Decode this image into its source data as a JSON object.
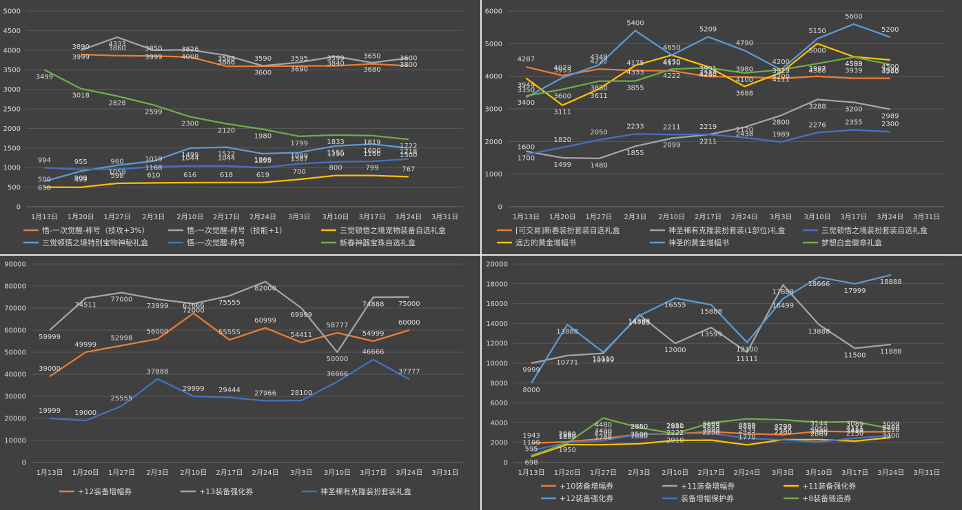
{
  "chart_data": [
    {
      "type": "line",
      "title": "",
      "categories": [
        "1月13日",
        "1月20日",
        "1月27日",
        "2月3日",
        "2月10日",
        "2月17日",
        "2月24日",
        "3月3日",
        "3月10日",
        "3月17日",
        "3月24日",
        "3月31日"
      ],
      "ylim": [
        0,
        5000
      ],
      "ytick_step": 500,
      "grid": true,
      "legend_position": "bottom",
      "series": [
        {
          "name": "悟-一次觉醒-称号（技攻+3%）",
          "color": "#ed7d31",
          "values": [
            null,
            3890,
            3860,
            3850,
            3826,
            3588,
            3590,
            3595,
            3599,
            3650,
            3600,
            null
          ]
        },
        {
          "name": "悟-一次觉醒-称号（技能+1）",
          "color": "#a5a5a5",
          "values": [
            null,
            3999,
            4333,
            3999,
            4008,
            3866,
            3600,
            3690,
            3840,
            3680,
            3800,
            null
          ]
        },
        {
          "name": "三觉顿悟之境宠物装备自选礼盒",
          "color": "#ffc000",
          "values": [
            500,
            499,
            598,
            610,
            616,
            618,
            619,
            700,
            800,
            799,
            767,
            null
          ]
        },
        {
          "name": "三觉顿悟之境特别宝物神秘礼盒",
          "color": "#5b9bd5",
          "values": [
            650,
            909,
            1059,
            1168,
            1499,
            1522,
            1355,
            1387,
            1555,
            1600,
            1500,
            null
          ]
        },
        {
          "name": "悟-一次觉醒-称号",
          "color": "#4472c4",
          "values": [
            994,
            955,
            960,
            1019,
            1044,
            1044,
            1000,
            1099,
            1150,
            1160,
            1218,
            null
          ]
        },
        {
          "name": "新春神器宝珠自选礼盒",
          "color": "#70ad47",
          "values": [
            3499,
            3018,
            2828,
            2599,
            2300,
            2120,
            1980,
            1799,
            1833,
            1819,
            1722,
            null
          ]
        }
      ]
    },
    {
      "type": "line",
      "title": "",
      "categories": [
        "1月13日",
        "1月20日",
        "1月27日",
        "2月3日",
        "2月10日",
        "2月17日",
        "2月24日",
        "3月3日",
        "3月10日",
        "3月17日",
        "3月24日",
        "3月31日"
      ],
      "ylim": [
        0,
        6000
      ],
      "ytick_step": 1000,
      "grid": true,
      "legend_position": "bottom",
      "series": [
        {
          "name": "[可交易]新春装扮套装自选礼盒",
          "color": "#ed7d31",
          "values": [
            4287,
            4023,
            4222,
            4175,
            4170,
            3991,
            3980,
            3929,
            3997,
            3939,
            3938,
            null
          ]
        },
        {
          "name": "神圣稀有克隆装扮套装(1部位)礼盒",
          "color": "#a5a5a5",
          "values": [
            1700,
            1499,
            1480,
            1855,
            2099,
            2211,
            2438,
            2800,
            3288,
            3200,
            2989,
            null
          ]
        },
        {
          "name": "三觉顿悟之境装扮套装自选礼盒",
          "color": "#4472c4",
          "values": [
            1600,
            1820,
            2050,
            2233,
            2211,
            2219,
            2120,
            1989,
            2276,
            2355,
            2300,
            null
          ]
        },
        {
          "name": "远古的黄金增幅书",
          "color": "#ffc000",
          "values": [
            3944,
            3111,
            3611,
            4333,
            4650,
            4288,
            3688,
            4111,
            5000,
            4599,
            4500,
            null
          ]
        },
        {
          "name": "神圣的黄金增幅书",
          "color": "#5b9bd5",
          "values": [
            3350,
            3955,
            4348,
            5400,
            4650,
            5209,
            4790,
            4200,
            5150,
            5600,
            5200,
            null
          ]
        },
        {
          "name": "梦想白金徽章礼盒",
          "color": "#70ad47",
          "values": [
            3400,
            3600,
            3850,
            3855,
            4222,
            4260,
            4100,
            4200,
            4388,
            4588,
            4360,
            null
          ]
        }
      ]
    },
    {
      "type": "line",
      "title": "",
      "categories": [
        "1月13日",
        "1月20日",
        "1月27日",
        "2月3日",
        "2月10日",
        "2月17日",
        "2月24日",
        "3月3日",
        "3月10日",
        "3月17日",
        "3月24日",
        "3月31日"
      ],
      "ylim": [
        0,
        90000
      ],
      "ytick_step": 10000,
      "grid": true,
      "legend_position": "bottom",
      "series": [
        {
          "name": "+12装备增幅券",
          "color": "#ed7d31",
          "values": [
            39000,
            49999,
            52998,
            56000,
            67666,
            55555,
            60999,
            54411,
            58777,
            54999,
            60000,
            null
          ]
        },
        {
          "name": "+13装备强化券",
          "color": "#a5a5a5",
          "values": [
            59999,
            74511,
            77000,
            73999,
            72000,
            75555,
            82000,
            69999,
            50000,
            74888,
            75000,
            null
          ]
        },
        {
          "name": "神圣稀有克隆装扮套装礼盒",
          "color": "#4472c4",
          "values": [
            19999,
            19000,
            25555,
            37888,
            29999,
            29444,
            27966,
            28100,
            36666,
            46666,
            37777,
            null
          ]
        }
      ]
    },
    {
      "type": "line",
      "title": "",
      "categories": [
        "1月13日",
        "1月20日",
        "1月27日",
        "2月3日",
        "2月10日",
        "2月17日",
        "2月24日",
        "3月3日",
        "3月10日",
        "3月17日",
        "3月24日",
        "3月31日"
      ],
      "ylim": [
        0,
        20000
      ],
      "ytick_step": 2000,
      "grid": true,
      "legend_position": "bottom",
      "series": [
        {
          "name": "+10装备增幅券",
          "color": "#ed7d31",
          "values": [
            1943,
            2080,
            2400,
            2850,
            2880,
            3100,
            2888,
            2790,
            3144,
            3089,
            3099,
            null
          ]
        },
        {
          "name": "+11装备增幅券",
          "color": "#a5a5a5",
          "values": [
            9999,
            10771,
            10999,
            14888,
            12000,
            13599,
            11111,
            17888,
            13888,
            11500,
            11888,
            null
          ]
        },
        {
          "name": "+11装备强化券",
          "color": "#ffc000",
          "values": [
            595,
            1800,
            1788,
            1880,
            2222,
            2250,
            1770,
            2300,
            2300,
            2150,
            2510,
            null
          ]
        },
        {
          "name": "+12装备强化券",
          "color": "#5b9bd5",
          "values": [
            8000,
            13888,
            11110,
            14785,
            16555,
            15888,
            12100,
            16499,
            18666,
            17999,
            18888,
            null
          ]
        },
        {
          "name": "装备增幅保护券",
          "color": "#4472c4",
          "values": [
            1199,
            1990,
            2200,
            2860,
            2911,
            2933,
            2433,
            2280,
            2069,
            2450,
            2700,
            null
          ]
        },
        {
          "name": "+8装备锻造券",
          "color": "#70ad47",
          "values": [
            698,
            1950,
            4480,
            3500,
            2910,
            3999,
            4399,
            4299,
            4050,
            4111,
            3400,
            null
          ]
        }
      ]
    }
  ]
}
